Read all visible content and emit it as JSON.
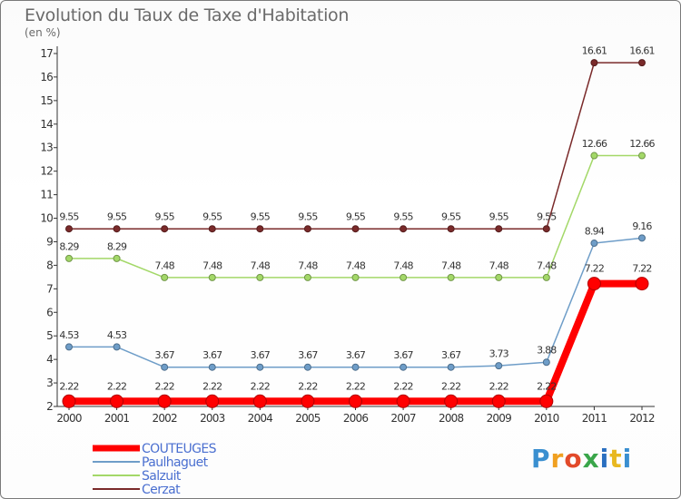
{
  "title": "Evolution du Taux de Taxe d'Habitation",
  "unit": "(en %)",
  "logo": {
    "text": "Proxiti",
    "icon": "proxiti-logo"
  },
  "chart_data": {
    "type": "line",
    "x": [
      "2000",
      "2001",
      "2002",
      "2003",
      "2004",
      "2005",
      "2006",
      "2007",
      "2008",
      "2009",
      "2010",
      "2011",
      "2012"
    ],
    "ylim": [
      2,
      17
    ],
    "yticks": [
      2,
      3,
      4,
      5,
      6,
      7,
      8,
      9,
      10,
      11,
      12,
      13,
      14,
      15,
      16,
      17
    ],
    "grid": false,
    "legend_position": "bottom-left",
    "series": [
      {
        "name": "COUTEUGES",
        "color": "#ff0000",
        "width": 8,
        "marker": 7,
        "values": [
          2.22,
          2.22,
          2.22,
          2.22,
          2.22,
          2.22,
          2.22,
          2.22,
          2.22,
          2.22,
          2.22,
          7.22,
          7.22
        ],
        "labels": [
          "2.22",
          "2.22",
          "2.22",
          "2.22",
          "2.22",
          "2.22",
          "2.22",
          "2.22",
          "2.22",
          "2.22",
          "2.22",
          "7.22",
          "7.22"
        ]
      },
      {
        "name": "Paulhaguet",
        "color": "#6e9dc8",
        "width": 1.5,
        "marker": 3.5,
        "values": [
          4.53,
          4.53,
          3.67,
          3.67,
          3.67,
          3.67,
          3.67,
          3.67,
          3.67,
          3.73,
          3.88,
          8.94,
          9.16
        ],
        "labels": [
          "4.53",
          "4.53",
          "3.67",
          "3.67",
          "3.67",
          "3.67",
          "3.67",
          "3.67",
          "3.67",
          "3.73",
          "3.88",
          "8.94",
          "9.16"
        ]
      },
      {
        "name": "Salzuit",
        "color": "#a3d868",
        "width": 1.5,
        "marker": 3.5,
        "values": [
          8.29,
          8.29,
          7.48,
          7.48,
          7.48,
          7.48,
          7.48,
          7.48,
          7.48,
          7.48,
          7.48,
          12.66,
          12.66
        ],
        "labels": [
          "8.29",
          "8.29",
          "7.48",
          "7.48",
          "7.48",
          "7.48",
          "7.48",
          "7.48",
          "7.48",
          "7.48",
          "7.48",
          "12.66",
          "12.66"
        ]
      },
      {
        "name": "Cerzat",
        "color": "#7a2a2a",
        "width": 1.5,
        "marker": 3.5,
        "values": [
          9.55,
          9.55,
          9.55,
          9.55,
          9.55,
          9.55,
          9.55,
          9.55,
          9.55,
          9.55,
          9.55,
          16.61,
          16.61
        ],
        "labels": [
          "9.55",
          "9.55",
          "9.55",
          "9.55",
          "9.55",
          "9.55",
          "9.55",
          "9.55",
          "9.55",
          "9.55",
          "9.55",
          "16.61",
          "16.61"
        ]
      }
    ]
  }
}
